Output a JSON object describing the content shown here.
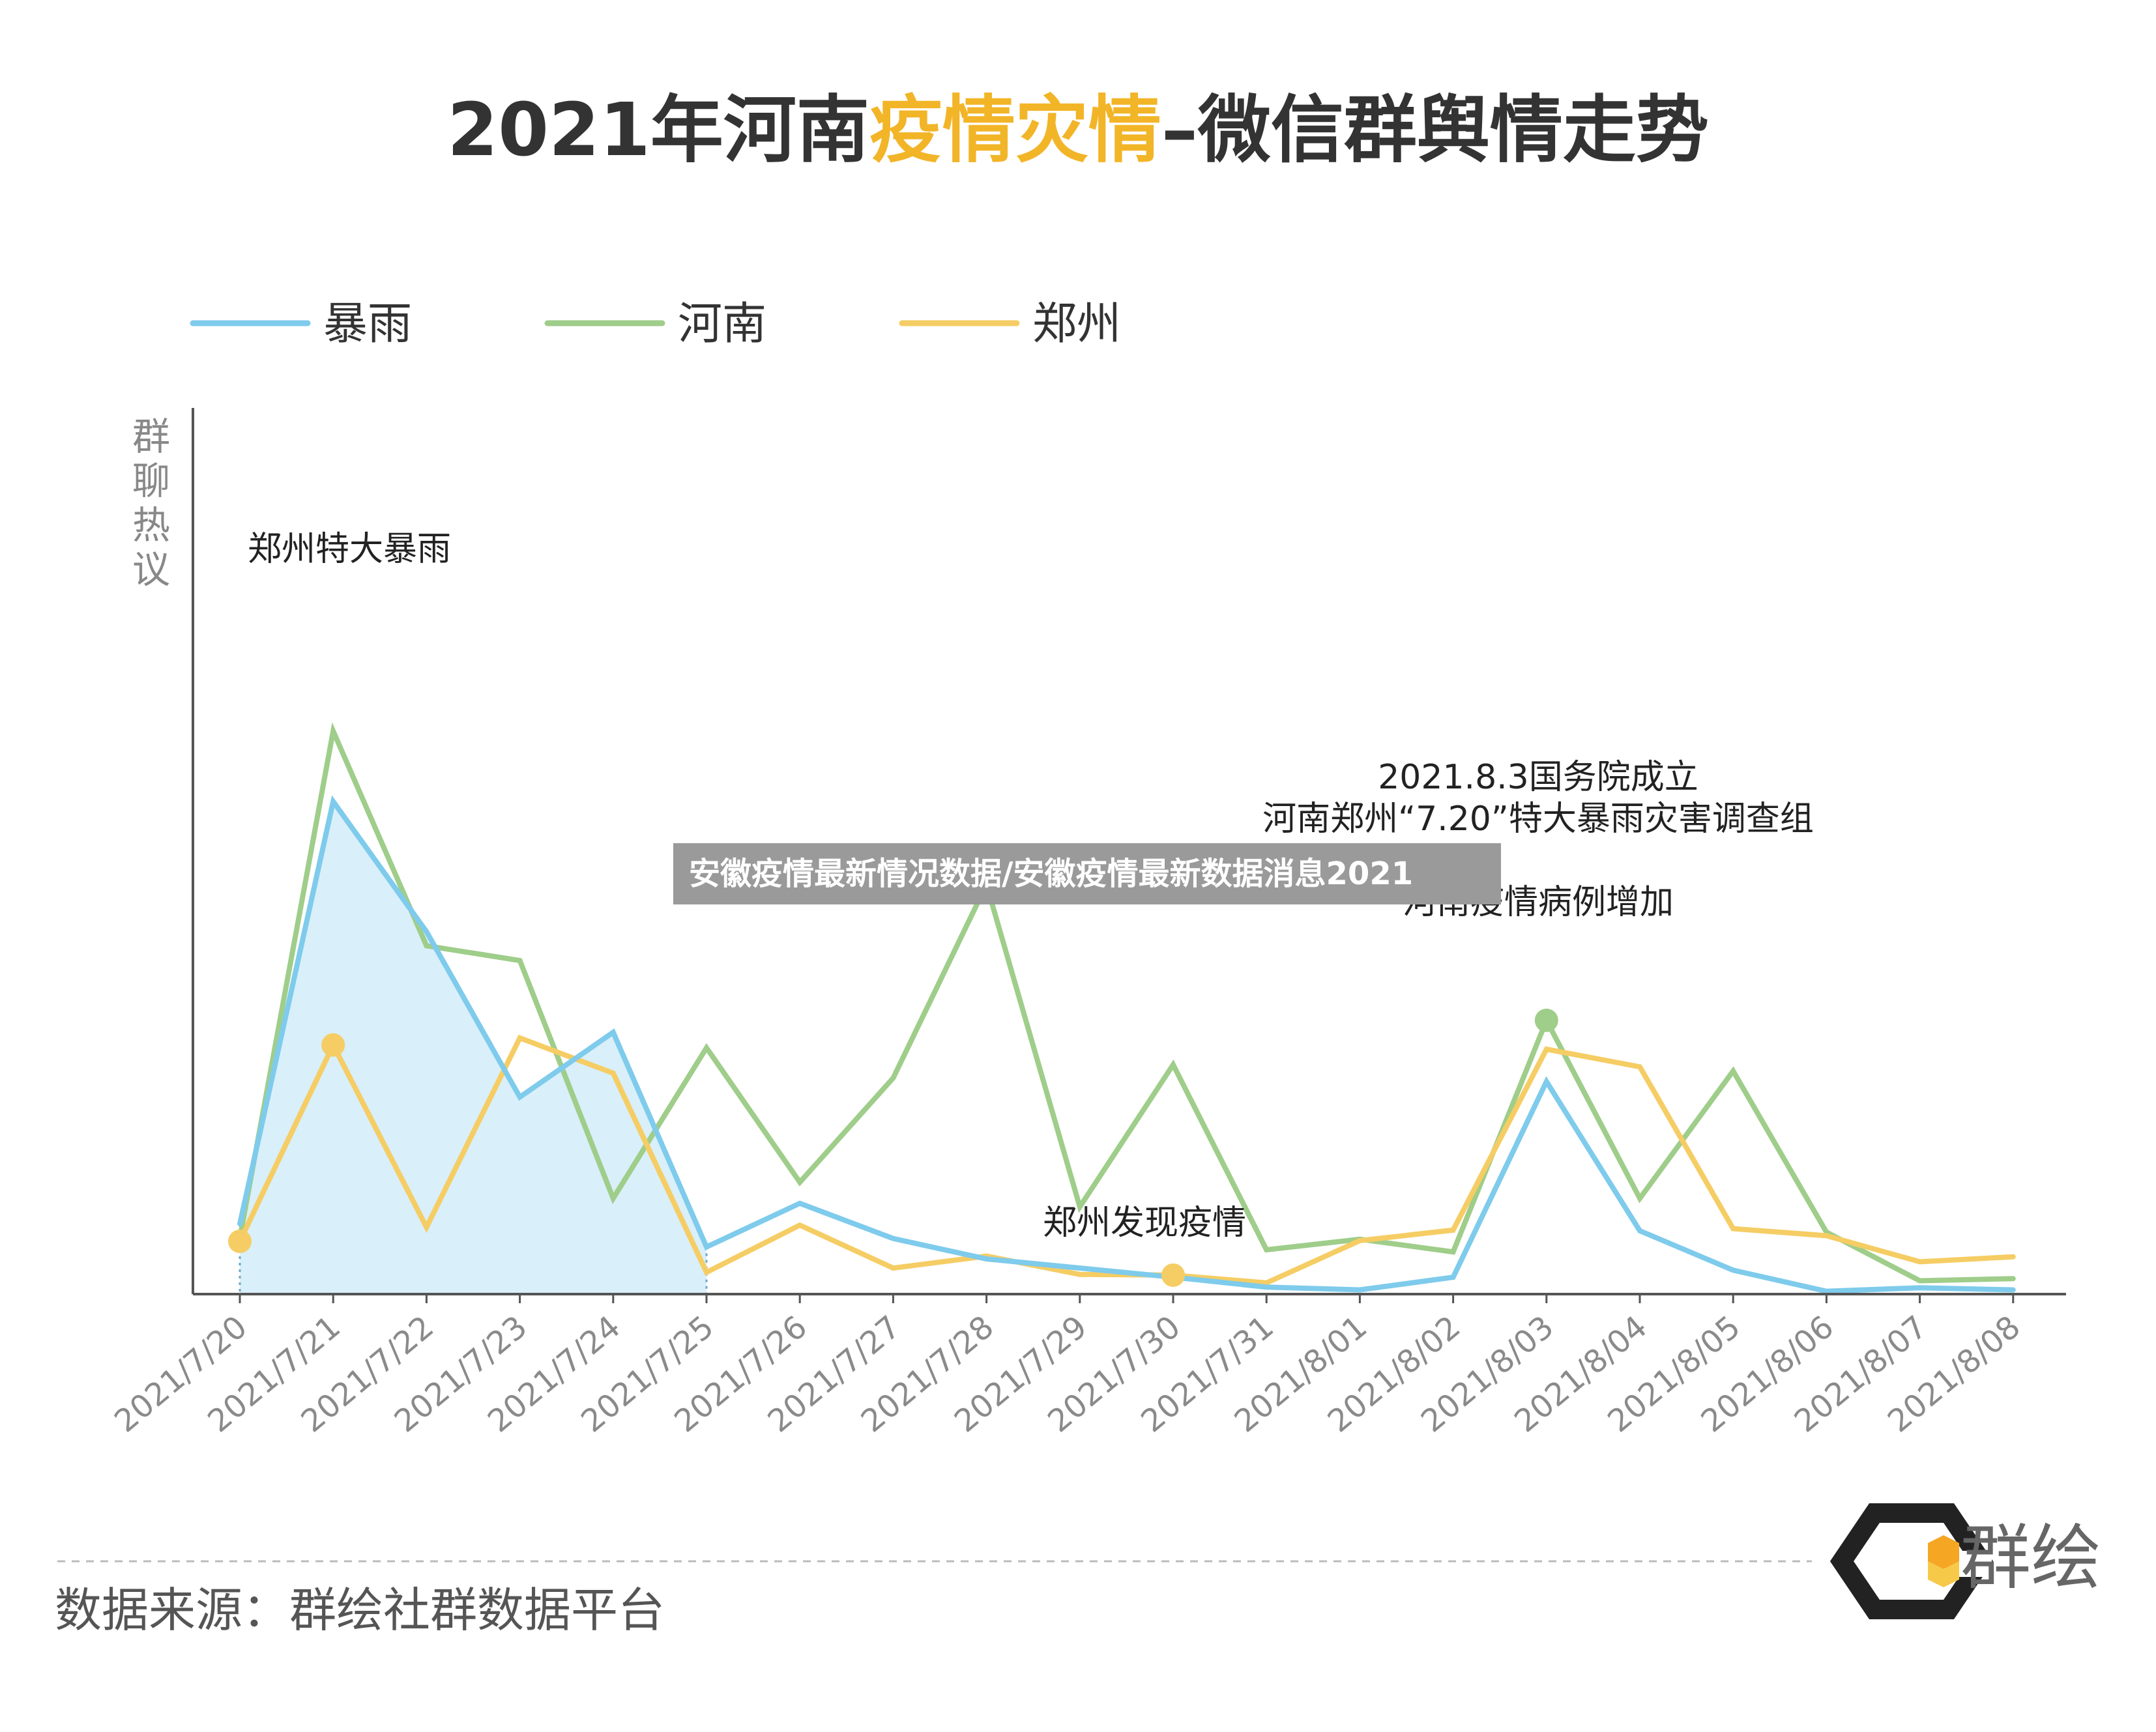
{
  "title": {
    "part1": "2021年河南",
    "part2": "疫情灾情",
    "part3": "–微信群舆情走势"
  },
  "watermark": "安徽疫情最新情况数据/安徽疫情最新数据消息2021",
  "source": "数据来源：群绘社群数据平台",
  "logo_text": "群绘",
  "colors": {
    "title": "#333333",
    "title_accent": "#f2b528",
    "rain": "#7ecbec",
    "henan": "#9fcd8a",
    "zhengzhou": "#f5cd64",
    "fill": "#d9eff9",
    "axis": "#555555",
    "tick_label": "#8a8a8a"
  },
  "chart_data": {
    "type": "line",
    "title": "2021年河南疫情灾情–微信群舆情走势",
    "ylabel": "群聊热议",
    "xlabel": "",
    "ylim": [
      0,
      100
    ],
    "grid": false,
    "legend_position": "top-left",
    "categories": [
      "2021/7/20",
      "2021/7/21",
      "2021/7/22",
      "2021/7/23",
      "2021/7/24",
      "2021/7/25",
      "2021/7/26",
      "2021/7/27",
      "2021/7/28",
      "2021/7/29",
      "2021/7/30",
      "2021/7/31",
      "2021/8/01",
      "2021/8/02",
      "2021/8/03",
      "2021/8/04",
      "2021/8/05",
      "2021/8/06",
      "2021/8/07",
      "2021/8/08"
    ],
    "series": [
      {
        "name": "暴雨",
        "color_key": "rain",
        "values": [
          10,
          70,
          51.5,
          28,
          37.2,
          6.7,
          12.9,
          7.9,
          5,
          3.7,
          2.4,
          1,
          0.6,
          2.4,
          30.2,
          9,
          3.4,
          0.4,
          0.9,
          0.6
        ]
      },
      {
        "name": "河南",
        "color_key": "henan",
        "values": [
          8,
          80,
          49.5,
          47.4,
          13.6,
          35,
          15.9,
          30.7,
          58.2,
          12.4,
          32.6,
          6.3,
          7.8,
          6,
          38.9,
          13.6,
          31.7,
          8.8,
          1.9,
          2.2
        ]
      },
      {
        "name": "郑州",
        "color_key": "zhengzhou",
        "values": [
          7.5,
          35.4,
          9.5,
          36.4,
          31.4,
          3.1,
          9.8,
          3.7,
          5.4,
          2.8,
          2.7,
          1.6,
          7.6,
          9.1,
          34.8,
          32.3,
          9.3,
          8.3,
          4.6,
          5.3
        ]
      }
    ],
    "shaded_area": {
      "series": "暴雨",
      "from": "2021/7/20",
      "to": "2021/7/25"
    },
    "markers": [
      {
        "series": "郑州",
        "x": "2021/7/20"
      },
      {
        "series": "郑州",
        "x": "2021/7/21"
      },
      {
        "series": "郑州",
        "x": "2021/7/30"
      },
      {
        "series": "河南",
        "x": "2021/8/03"
      }
    ],
    "annotations": [
      {
        "id": "a1",
        "lines": [
          "郑州特大暴雨"
        ],
        "x": "2021/7/21"
      },
      {
        "id": "a2",
        "lines": [
          "2021.8.3国务院成立",
          "河南郑州“7.20”特大暴雨灾害调查组",
          "河南疫情病例增加"
        ],
        "x": "2021/8/03"
      },
      {
        "id": "a3",
        "lines": [
          "郑州发现疫情"
        ],
        "x": "2021/7/30"
      }
    ]
  }
}
